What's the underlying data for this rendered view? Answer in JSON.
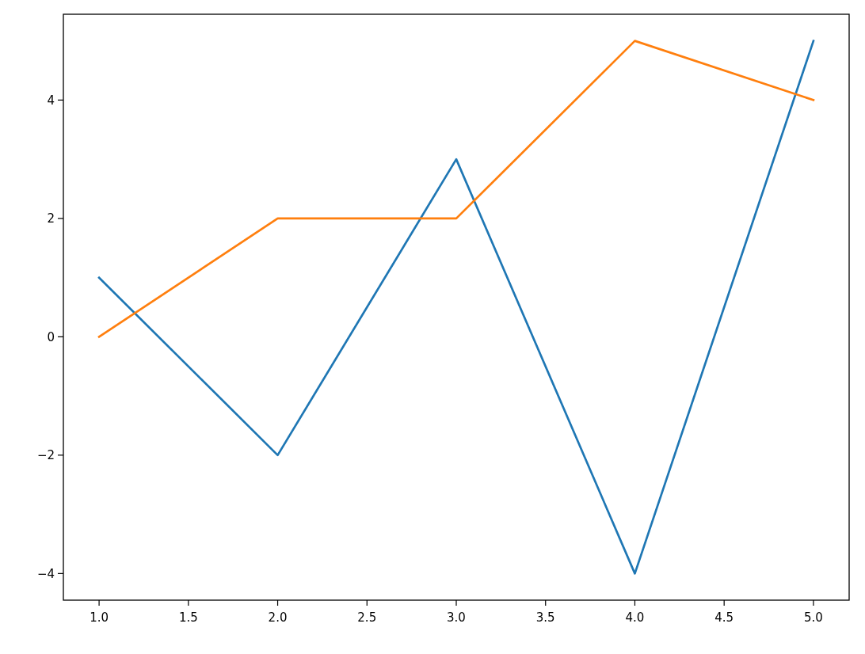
{
  "chart_data": {
    "type": "line",
    "x": [
      1,
      2,
      3,
      4,
      5
    ],
    "series": [
      {
        "color": "#1f77b4",
        "values": [
          1,
          -2,
          3,
          -4,
          5
        ]
      },
      {
        "color": "#ff7f0e",
        "values": [
          0,
          2,
          2,
          5,
          4
        ]
      }
    ],
    "xlim": [
      0.8,
      5.2
    ],
    "ylim": [
      -4.45,
      5.45
    ],
    "xticks": [
      {
        "value": 1,
        "label": "1.0"
      },
      {
        "value": 1.5,
        "label": "1.5"
      },
      {
        "value": 2,
        "label": "2.0"
      },
      {
        "value": 2.5,
        "label": "2.5"
      },
      {
        "value": 3,
        "label": "3.0"
      },
      {
        "value": 3.5,
        "label": "3.5"
      },
      {
        "value": 4,
        "label": "4.0"
      },
      {
        "value": 4.5,
        "label": "4.5"
      },
      {
        "value": 5,
        "label": "5.0"
      }
    ],
    "yticks": [
      {
        "value": -4,
        "label": "−4"
      },
      {
        "value": -2,
        "label": "−2"
      },
      0,
      2,
      4
    ],
    "grid": false,
    "marker": "none",
    "line_style": "solid"
  }
}
